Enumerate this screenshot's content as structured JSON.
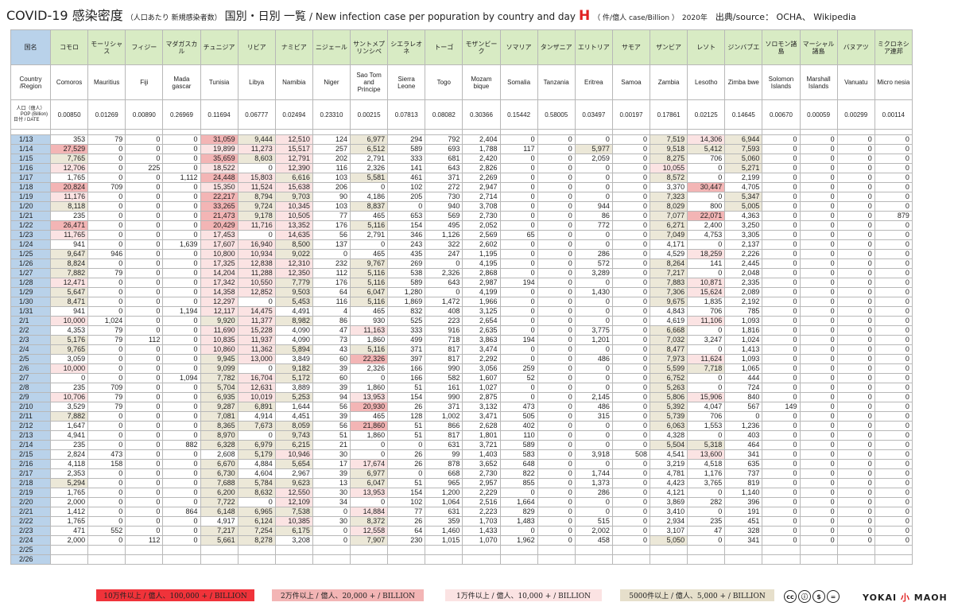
{
  "title": {
    "main": "COVID-19 感染密度",
    "sub1": "（人口あたり 新規感染者数）",
    "sub2": "国別・日別 一覧",
    "en": "/ New infection case per popuration by country and day",
    "letter": "H",
    "unit": "（ 件/億人 case/Billion ）",
    "year": "2020年",
    "source": "出典/source： OCHA、 Wikipedia"
  },
  "header_labels": {
    "kuni": "国名",
    "region": "Country /Region",
    "pop_top": "人口（億人）",
    "pop_mid": "POP",
    "pop_unit": "(Billion)",
    "date": "日付 / DATE"
  },
  "countries_jp": [
    "コモロ",
    "モーリシャス",
    "フィジー",
    "マダガスカル",
    "チュニジア",
    "リビア",
    "ナミビア",
    "ニジェール",
    "サントメプリンシペ",
    "シエラレオネ",
    "トーゴ",
    "モザンビーク",
    "ソマリア",
    "タンザニア",
    "エリトリア",
    "サモア",
    "ザンビア",
    "レソト",
    "ジンバブエ",
    "ソロモン諸島",
    "マーシャル諸島",
    "バヌアツ",
    "ミクロネシア連邦"
  ],
  "countries_en": [
    "Comoros",
    "Mauritius",
    "Fiji",
    "Mada gascar",
    "Tunisia",
    "Libya",
    "Namibia",
    "Niger",
    "Sao Tom and Principe",
    "Sierra Leone",
    "Togo",
    "Mozam bique",
    "Somalia",
    "Tanzania",
    "Eritrea",
    "Samoa",
    "Zambia",
    "Lesotho",
    "Zimba bwe",
    "Solomon Islands",
    "Marshall Islands",
    "Vanuatu",
    "Micro nesia"
  ],
  "population": [
    "0.00850",
    "0.01269",
    "0.00890",
    "0.26969",
    "0.11694",
    "0.06777",
    "0.02494",
    "0.23310",
    "0.00215",
    "0.07813",
    "0.08082",
    "0.30366",
    "0.15442",
    "0.58005",
    "0.03497",
    "0.00197",
    "0.17861",
    "0.02125",
    "0.14645",
    "0.00670",
    "0.00059",
    "0.00299",
    "0.00114"
  ],
  "rows": [
    {
      "date": "1/13",
      "v": [
        "353",
        "79",
        "0",
        "0",
        "31,059",
        "9,444",
        "12,510",
        "124",
        "6,977",
        "294",
        "792",
        "2,404",
        "0",
        "0",
        "0",
        "0",
        "7,519",
        "14,306",
        "6,944",
        "0",
        "0",
        "0",
        "0"
      ]
    },
    {
      "date": "1/14",
      "v": [
        "27,529",
        "0",
        "0",
        "0",
        "19,899",
        "11,273",
        "15,517",
        "257",
        "6,512",
        "589",
        "693",
        "1,788",
        "117",
        "0",
        "5,977",
        "0",
        "9,518",
        "5,412",
        "7,593",
        "0",
        "0",
        "0",
        "0"
      ]
    },
    {
      "date": "1/15",
      "v": [
        "7,765",
        "0",
        "0",
        "0",
        "35,659",
        "8,603",
        "12,791",
        "202",
        "2,791",
        "333",
        "681",
        "2,420",
        "0",
        "0",
        "2,059",
        "0",
        "8,275",
        "706",
        "5,060",
        "0",
        "0",
        "0",
        "0"
      ]
    },
    {
      "date": "1/16",
      "v": [
        "12,706",
        "0",
        "225",
        "0",
        "18,522",
        "0",
        "12,390",
        "116",
        "2,326",
        "141",
        "643",
        "2,826",
        "0",
        "0",
        "0",
        "0",
        "10,055",
        "0",
        "5,271",
        "0",
        "0",
        "0",
        "0"
      ]
    },
    {
      "date": "1/17",
      "v": [
        "1,765",
        "0",
        "0",
        "1,112",
        "24,448",
        "15,803",
        "6,616",
        "103",
        "5,581",
        "461",
        "371",
        "2,269",
        "0",
        "0",
        "0",
        "0",
        "8,572",
        "0",
        "2,199",
        "0",
        "0",
        "0",
        "0"
      ]
    },
    {
      "date": "1/18",
      "v": [
        "20,824",
        "709",
        "0",
        "0",
        "15,350",
        "11,524",
        "15,638",
        "206",
        "0",
        "102",
        "272",
        "2,947",
        "0",
        "0",
        "0",
        "0",
        "3,370",
        "30,447",
        "4,705",
        "0",
        "0",
        "0",
        "0"
      ]
    },
    {
      "date": "1/19",
      "v": [
        "11,176",
        "0",
        "0",
        "0",
        "22,217",
        "8,794",
        "9,703",
        "90",
        "4,186",
        "205",
        "730",
        "2,714",
        "0",
        "0",
        "0",
        "0",
        "7,323",
        "0",
        "5,347",
        "0",
        "0",
        "0",
        "0"
      ]
    },
    {
      "date": "1/20",
      "v": [
        "8,118",
        "0",
        "0",
        "0",
        "33,265",
        "9,724",
        "10,345",
        "103",
        "8,837",
        "0",
        "940",
        "3,708",
        "0",
        "0",
        "944",
        "0",
        "8,029",
        "800",
        "5,005",
        "0",
        "0",
        "0",
        "0"
      ]
    },
    {
      "date": "1/21",
      "v": [
        "235",
        "0",
        "0",
        "0",
        "21,473",
        "9,178",
        "10,505",
        "77",
        "465",
        "653",
        "569",
        "2,730",
        "0",
        "0",
        "86",
        "0",
        "7,077",
        "22,071",
        "4,363",
        "0",
        "0",
        "0",
        "879"
      ]
    },
    {
      "date": "1/22",
      "v": [
        "26,471",
        "0",
        "0",
        "0",
        "20,429",
        "11,716",
        "13,352",
        "176",
        "5,116",
        "154",
        "495",
        "2,052",
        "0",
        "0",
        "772",
        "0",
        "6,271",
        "2,400",
        "3,250",
        "0",
        "0",
        "0",
        "0"
      ]
    },
    {
      "date": "1/23",
      "v": [
        "11,765",
        "0",
        "0",
        "0",
        "17,453",
        "0",
        "14,635",
        "56",
        "2,791",
        "346",
        "1,126",
        "2,569",
        "65",
        "0",
        "0",
        "0",
        "7,049",
        "4,753",
        "3,305",
        "0",
        "0",
        "0",
        "0"
      ]
    },
    {
      "date": "1/24",
      "v": [
        "941",
        "0",
        "0",
        "1,639",
        "17,607",
        "16,940",
        "8,500",
        "137",
        "0",
        "243",
        "322",
        "2,602",
        "0",
        "0",
        "0",
        "0",
        "4,171",
        "0",
        "2,137",
        "0",
        "0",
        "0",
        "0"
      ]
    },
    {
      "date": "1/25",
      "v": [
        "9,647",
        "946",
        "0",
        "0",
        "10,800",
        "10,934",
        "9,022",
        "0",
        "465",
        "435",
        "247",
        "1,195",
        "0",
        "0",
        "286",
        "0",
        "4,529",
        "18,259",
        "2,226",
        "0",
        "0",
        "0",
        "0"
      ]
    },
    {
      "date": "1/26",
      "v": [
        "8,824",
        "0",
        "0",
        "0",
        "17,325",
        "12,838",
        "12,310",
        "232",
        "9,767",
        "269",
        "0",
        "4,195",
        "0",
        "0",
        "572",
        "0",
        "8,264",
        "141",
        "2,445",
        "0",
        "0",
        "0",
        "0"
      ]
    },
    {
      "date": "1/27",
      "v": [
        "7,882",
        "79",
        "0",
        "0",
        "14,204",
        "11,288",
        "12,350",
        "112",
        "5,116",
        "538",
        "2,326",
        "2,868",
        "0",
        "0",
        "3,289",
        "0",
        "7,217",
        "0",
        "2,048",
        "0",
        "0",
        "0",
        "0"
      ]
    },
    {
      "date": "1/28",
      "v": [
        "12,471",
        "0",
        "0",
        "0",
        "17,342",
        "10,550",
        "7,779",
        "176",
        "5,116",
        "589",
        "643",
        "2,987",
        "194",
        "0",
        "0",
        "0",
        "7,883",
        "10,871",
        "2,335",
        "0",
        "0",
        "0",
        "0"
      ]
    },
    {
      "date": "1/29",
      "v": [
        "5,647",
        "0",
        "0",
        "0",
        "14,358",
        "12,852",
        "9,503",
        "64",
        "6,047",
        "1,280",
        "0",
        "4,199",
        "0",
        "0",
        "1,430",
        "0",
        "7,306",
        "15,624",
        "2,089",
        "0",
        "0",
        "0",
        "0"
      ]
    },
    {
      "date": "1/30",
      "v": [
        "8,471",
        "0",
        "0",
        "0",
        "12,297",
        "0",
        "5,453",
        "116",
        "5,116",
        "1,869",
        "1,472",
        "1,966",
        "0",
        "0",
        "0",
        "0",
        "9,675",
        "1,835",
        "2,192",
        "0",
        "0",
        "0",
        "0"
      ]
    },
    {
      "date": "1/31",
      "v": [
        "941",
        "0",
        "0",
        "1,194",
        "12,117",
        "14,475",
        "4,491",
        "4",
        "465",
        "832",
        "408",
        "3,125",
        "0",
        "0",
        "0",
        "0",
        "4,843",
        "706",
        "785",
        "0",
        "0",
        "0",
        "0"
      ]
    },
    {
      "date": "2/1",
      "v": [
        "10,000",
        "1,024",
        "0",
        "0",
        "9,920",
        "11,377",
        "8,982",
        "86",
        "930",
        "525",
        "223",
        "2,654",
        "0",
        "0",
        "0",
        "0",
        "4,619",
        "11,106",
        "1,093",
        "0",
        "0",
        "0",
        "0"
      ]
    },
    {
      "date": "2/2",
      "v": [
        "4,353",
        "79",
        "0",
        "0",
        "11,690",
        "15,228",
        "4,090",
        "47",
        "11,163",
        "333",
        "916",
        "2,635",
        "0",
        "0",
        "3,775",
        "0",
        "6,668",
        "0",
        "1,816",
        "0",
        "0",
        "0",
        "0"
      ]
    },
    {
      "date": "2/3",
      "v": [
        "5,176",
        "79",
        "112",
        "0",
        "10,835",
        "11,937",
        "4,090",
        "73",
        "1,860",
        "499",
        "718",
        "3,863",
        "194",
        "0",
        "1,201",
        "0",
        "7,032",
        "3,247",
        "1,024",
        "0",
        "0",
        "0",
        "0"
      ]
    },
    {
      "date": "2/4",
      "v": [
        "9,765",
        "0",
        "0",
        "0",
        "10,860",
        "11,362",
        "5,894",
        "43",
        "5,116",
        "371",
        "817",
        "3,474",
        "0",
        "0",
        "0",
        "0",
        "8,477",
        "0",
        "1,413",
        "0",
        "0",
        "0",
        "0"
      ]
    },
    {
      "date": "2/5",
      "v": [
        "3,059",
        "0",
        "0",
        "0",
        "9,945",
        "13,000",
        "3,849",
        "60",
        "22,326",
        "397",
        "817",
        "2,292",
        "0",
        "0",
        "486",
        "0",
        "7,973",
        "11,624",
        "1,093",
        "0",
        "0",
        "0",
        "0"
      ]
    },
    {
      "date": "2/6",
      "v": [
        "10,000",
        "0",
        "0",
        "0",
        "9,099",
        "0",
        "9,182",
        "39",
        "2,326",
        "166",
        "990",
        "3,056",
        "259",
        "0",
        "0",
        "0",
        "5,599",
        "7,718",
        "1,065",
        "0",
        "0",
        "0",
        "0"
      ]
    },
    {
      "date": "2/7",
      "v": [
        "0",
        "0",
        "0",
        "1,094",
        "7,782",
        "16,704",
        "5,172",
        "60",
        "0",
        "166",
        "582",
        "1,607",
        "52",
        "0",
        "0",
        "0",
        "6,752",
        "0",
        "444",
        "0",
        "0",
        "0",
        "0"
      ]
    },
    {
      "date": "2/8",
      "v": [
        "235",
        "709",
        "0",
        "0",
        "5,704",
        "12,631",
        "3,889",
        "39",
        "1,860",
        "51",
        "161",
        "1,027",
        "0",
        "0",
        "0",
        "0",
        "5,263",
        "0",
        "724",
        "0",
        "0",
        "0",
        "0"
      ]
    },
    {
      "date": "2/9",
      "v": [
        "10,706",
        "79",
        "0",
        "0",
        "6,935",
        "10,019",
        "5,253",
        "94",
        "13,953",
        "154",
        "990",
        "2,875",
        "0",
        "0",
        "2,145",
        "0",
        "5,806",
        "15,906",
        "840",
        "0",
        "0",
        "0",
        "0"
      ]
    },
    {
      "date": "2/10",
      "v": [
        "3,529",
        "79",
        "0",
        "0",
        "9,287",
        "6,891",
        "1,644",
        "56",
        "20,930",
        "26",
        "371",
        "3,132",
        "473",
        "0",
        "486",
        "0",
        "5,392",
        "4,047",
        "567",
        "149",
        "0",
        "0",
        "0"
      ]
    },
    {
      "date": "2/11",
      "v": [
        "7,882",
        "0",
        "0",
        "0",
        "7,081",
        "4,914",
        "4,451",
        "39",
        "465",
        "128",
        "1,002",
        "3,471",
        "505",
        "0",
        "315",
        "0",
        "5,739",
        "706",
        "0",
        "0",
        "0",
        "0",
        "0"
      ]
    },
    {
      "date": "2/12",
      "v": [
        "1,647",
        "0",
        "0",
        "0",
        "8,365",
        "7,673",
        "8,059",
        "56",
        "21,860",
        "51",
        "866",
        "2,628",
        "402",
        "0",
        "0",
        "0",
        "6,063",
        "1,553",
        "1,236",
        "0",
        "0",
        "0",
        "0"
      ]
    },
    {
      "date": "2/13",
      "v": [
        "4,941",
        "0",
        "0",
        "0",
        "8,970",
        "0",
        "9,743",
        "51",
        "1,860",
        "51",
        "817",
        "1,801",
        "110",
        "0",
        "0",
        "0",
        "4,328",
        "0",
        "403",
        "0",
        "0",
        "0",
        "0"
      ]
    },
    {
      "date": "2/14",
      "v": [
        "235",
        "0",
        "0",
        "882",
        "6,328",
        "6,979",
        "6,215",
        "21",
        "0",
        "0",
        "631",
        "3,721",
        "589",
        "0",
        "0",
        "0",
        "5,504",
        "5,318",
        "464",
        "0",
        "0",
        "0",
        "0"
      ]
    },
    {
      "date": "2/15",
      "v": [
        "2,824",
        "473",
        "0",
        "0",
        "2,608",
        "5,179",
        "10,946",
        "30",
        "0",
        "26",
        "99",
        "1,403",
        "583",
        "0",
        "3,918",
        "508",
        "4,541",
        "13,600",
        "341",
        "0",
        "0",
        "0",
        "0"
      ]
    },
    {
      "date": "2/16",
      "v": [
        "4,118",
        "158",
        "0",
        "0",
        "6,670",
        "4,884",
        "5,654",
        "17",
        "17,674",
        "26",
        "878",
        "3,652",
        "648",
        "0",
        "0",
        "0",
        "3,219",
        "4,518",
        "635",
        "0",
        "0",
        "0",
        "0"
      ]
    },
    {
      "date": "2/17",
      "v": [
        "2,353",
        "0",
        "0",
        "0",
        "6,730",
        "4,604",
        "2,967",
        "39",
        "6,977",
        "0",
        "668",
        "2,730",
        "822",
        "0",
        "1,744",
        "0",
        "4,781",
        "1,176",
        "737",
        "0",
        "0",
        "0",
        "0"
      ]
    },
    {
      "date": "2/18",
      "v": [
        "5,294",
        "0",
        "0",
        "0",
        "7,688",
        "5,784",
        "9,623",
        "13",
        "6,047",
        "51",
        "965",
        "2,957",
        "855",
        "0",
        "1,373",
        "0",
        "4,423",
        "3,765",
        "819",
        "0",
        "0",
        "0",
        "0"
      ]
    },
    {
      "date": "2/19",
      "v": [
        "1,765",
        "0",
        "0",
        "0",
        "6,200",
        "8,632",
        "12,550",
        "30",
        "13,953",
        "154",
        "1,200",
        "2,229",
        "0",
        "0",
        "286",
        "0",
        "4,121",
        "0",
        "1,140",
        "0",
        "0",
        "0",
        "0"
      ]
    },
    {
      "date": "2/20",
      "v": [
        "2,000",
        "0",
        "0",
        "0",
        "7,722",
        "0",
        "12,109",
        "34",
        "0",
        "102",
        "1,064",
        "2,516",
        "1,664",
        "0",
        "0",
        "0",
        "3,869",
        "282",
        "396",
        "0",
        "0",
        "0",
        "0"
      ]
    },
    {
      "date": "2/21",
      "v": [
        "1,412",
        "0",
        "0",
        "864",
        "6,148",
        "6,965",
        "7,538",
        "0",
        "14,884",
        "77",
        "631",
        "2,223",
        "829",
        "0",
        "0",
        "0",
        "3,410",
        "0",
        "191",
        "0",
        "0",
        "0",
        "0"
      ]
    },
    {
      "date": "2/22",
      "v": [
        "1,765",
        "0",
        "0",
        "0",
        "4,917",
        "6,124",
        "10,385",
        "30",
        "8,372",
        "26",
        "359",
        "1,703",
        "1,483",
        "0",
        "515",
        "0",
        "2,934",
        "235",
        "451",
        "0",
        "0",
        "0",
        "0"
      ]
    },
    {
      "date": "2/23",
      "v": [
        "471",
        "552",
        "0",
        "0",
        "7,217",
        "7,254",
        "6,175",
        "0",
        "12,558",
        "64",
        "1,460",
        "1,433",
        "0",
        "0",
        "2,002",
        "0",
        "3,107",
        "47",
        "328",
        "0",
        "0",
        "0",
        "0"
      ]
    },
    {
      "date": "2/24",
      "v": [
        "2,000",
        "0",
        "112",
        "0",
        "5,661",
        "8,278",
        "3,208",
        "0",
        "7,907",
        "230",
        "1,015",
        "1,070",
        "1,962",
        "0",
        "458",
        "0",
        "5,050",
        "0",
        "341",
        "0",
        "0",
        "0",
        "0"
      ]
    },
    {
      "date": "2/25",
      "v": []
    },
    {
      "date": "2/26",
      "v": []
    }
  ],
  "legend": {
    "l1": "10万件以上 / 億人、100,000 + / BILLION",
    "l2": "2万件以上 / 億人、20,000 + / BILLION",
    "l3": "1万件以上 / 億人、10,000 + / BILLION",
    "l4": "5000件以上 / 億人、5,000 + / BILLION"
  },
  "license_icons": [
    "cc-icon",
    "by-icon",
    "nc-icon",
    "nd-icon"
  ],
  "signature": {
    "a": "YOKAI",
    "b": "小",
    "c": "MAOH"
  },
  "colors": {
    "c1": "#f0777d",
    "c2": "#f3b5b5",
    "c3": "#fbe3e3",
    "c4": "#ece8d8",
    "date": "#b9d2ea",
    "jp_header": "#d8ebc4"
  }
}
